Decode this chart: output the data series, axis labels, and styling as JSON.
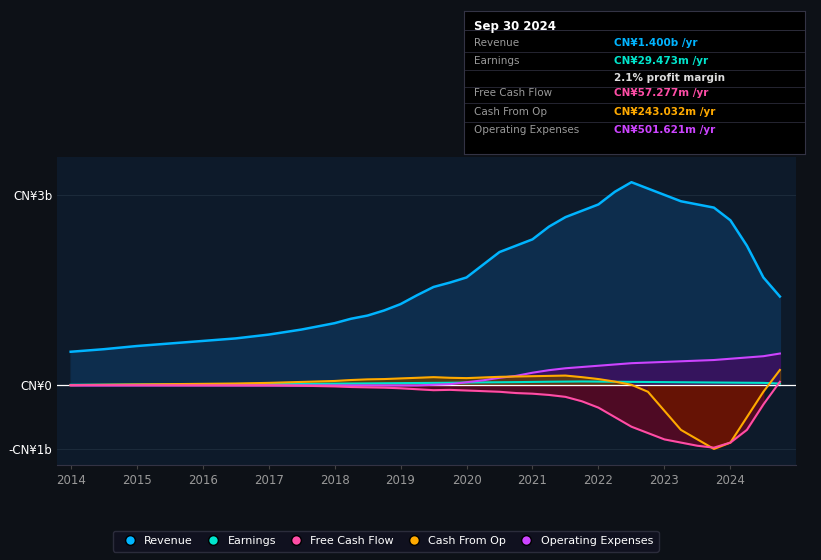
{
  "bg_color": "#0d1117",
  "plot_bg_color": "#0d1a2a",
  "tooltip": {
    "date": "Sep 30 2024",
    "revenue_label": "Revenue",
    "revenue_value": "CN¥1.400b /yr",
    "revenue_color": "#00b4ff",
    "earnings_label": "Earnings",
    "earnings_value": "CN¥29.473m /yr",
    "earnings_color": "#00e5cc",
    "profit_margin": "2.1% profit margin",
    "fcf_label": "Free Cash Flow",
    "fcf_value": "CN¥57.277m /yr",
    "fcf_color": "#ff4da6",
    "cashop_label": "Cash From Op",
    "cashop_value": "CN¥243.032m /yr",
    "cashop_color": "#ffaa00",
    "opex_label": "Operating Expenses",
    "opex_value": "CN¥501.621m /yr",
    "opex_color": "#cc44ff"
  },
  "years": [
    2014.0,
    2014.5,
    2015.0,
    2015.5,
    2016.0,
    2016.5,
    2017.0,
    2017.5,
    2018.0,
    2018.25,
    2018.5,
    2018.75,
    2019.0,
    2019.25,
    2019.5,
    2019.75,
    2020.0,
    2020.25,
    2020.5,
    2020.75,
    2021.0,
    2021.25,
    2021.5,
    2021.75,
    2022.0,
    2022.25,
    2022.5,
    2022.75,
    2023.0,
    2023.25,
    2023.5,
    2023.75,
    2024.0,
    2024.25,
    2024.5,
    2024.75
  ],
  "revenue": [
    0.53,
    0.57,
    0.62,
    0.66,
    0.7,
    0.74,
    0.8,
    0.88,
    0.98,
    1.05,
    1.1,
    1.18,
    1.28,
    1.42,
    1.55,
    1.62,
    1.7,
    1.9,
    2.1,
    2.2,
    2.3,
    2.5,
    2.65,
    2.75,
    2.85,
    3.05,
    3.2,
    3.1,
    3.0,
    2.9,
    2.85,
    2.8,
    2.6,
    2.2,
    1.7,
    1.4
  ],
  "earnings": [
    0.01,
    0.012,
    0.015,
    0.016,
    0.018,
    0.02,
    0.022,
    0.025,
    0.028,
    0.03,
    0.032,
    0.034,
    0.036,
    0.038,
    0.04,
    0.042,
    0.045,
    0.048,
    0.05,
    0.052,
    0.055,
    0.058,
    0.06,
    0.062,
    0.06,
    0.058,
    0.056,
    0.054,
    0.052,
    0.05,
    0.048,
    0.046,
    0.044,
    0.042,
    0.04,
    0.029
  ],
  "free_cash_flow": [
    0.005,
    0.005,
    0.005,
    0.004,
    0.003,
    0.002,
    0.001,
    -0.005,
    -0.015,
    -0.025,
    -0.03,
    -0.035,
    -0.045,
    -0.06,
    -0.075,
    -0.07,
    -0.08,
    -0.09,
    -0.1,
    -0.12,
    -0.13,
    -0.15,
    -0.18,
    -0.25,
    -0.35,
    -0.5,
    -0.65,
    -0.75,
    -0.85,
    -0.9,
    -0.95,
    -0.98,
    -0.9,
    -0.7,
    -0.3,
    0.057
  ],
  "cash_from_op": [
    0.005,
    0.01,
    0.015,
    0.02,
    0.025,
    0.03,
    0.04,
    0.055,
    0.07,
    0.085,
    0.095,
    0.1,
    0.11,
    0.12,
    0.13,
    0.12,
    0.115,
    0.125,
    0.135,
    0.14,
    0.145,
    0.15,
    0.155,
    0.13,
    0.1,
    0.06,
    0.01,
    -0.1,
    -0.4,
    -0.7,
    -0.85,
    -1.0,
    -0.9,
    -0.5,
    -0.1,
    0.243
  ],
  "operating_expenses": [
    0.0,
    0.0,
    0.0,
    0.0,
    0.0,
    0.0,
    0.0,
    0.0,
    0.0,
    0.0,
    0.0,
    0.0,
    0.0,
    0.0,
    0.01,
    0.02,
    0.05,
    0.08,
    0.12,
    0.15,
    0.2,
    0.24,
    0.27,
    0.29,
    0.31,
    0.33,
    0.35,
    0.36,
    0.37,
    0.38,
    0.39,
    0.4,
    0.42,
    0.44,
    0.46,
    0.502
  ],
  "revenue_fill_color": "#0d2d4d",
  "revenue_line_color": "#00b4ff",
  "earnings_line_color": "#00e5cc",
  "earnings_fill_color": "#004d3d",
  "fcf_line_color": "#ff4da6",
  "fcf_neg_fill": "#7a0020",
  "cashop_line_color": "#ffaa00",
  "cashop_neg_fill": "#6b1500",
  "opex_line_color": "#cc44ff",
  "opex_fill_color": "#3d1060",
  "ylim_min": -1.25,
  "ylim_max": 3.6,
  "yticks": [
    -1.0,
    0.0,
    3.0
  ],
  "ytick_labels": [
    "-CN¥1b",
    "CN¥0",
    "CN¥3b"
  ],
  "xticks": [
    2014,
    2015,
    2016,
    2017,
    2018,
    2019,
    2020,
    2021,
    2022,
    2023,
    2024
  ],
  "legend_items": [
    "Revenue",
    "Earnings",
    "Free Cash Flow",
    "Cash From Op",
    "Operating Expenses"
  ],
  "legend_colors": [
    "#00b4ff",
    "#00e5cc",
    "#ff4da6",
    "#ffaa00",
    "#cc44ff"
  ]
}
